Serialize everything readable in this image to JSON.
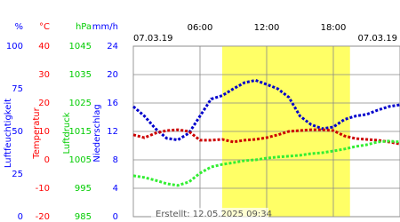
{
  "chart_data": {
    "type": "line",
    "date_left": "07.03.19",
    "date_right": "07.03.19",
    "created": "Erstellt: 12.05.2025 09:34",
    "xlim": [
      0,
      24
    ],
    "xticks": [
      {
        "value": 6,
        "label": "06:00"
      },
      {
        "value": 12,
        "label": "12:00"
      },
      {
        "value": 18,
        "label": "18:00"
      }
    ],
    "daylight": [
      8,
      19.5
    ],
    "grid": true,
    "axes": [
      {
        "unit": "%",
        "title": "Luftfeuchtigkeit",
        "color": "#0000ff",
        "lim": [
          0,
          100
        ],
        "ticks": [
          0,
          25,
          50,
          75,
          100
        ]
      },
      {
        "unit": "°C",
        "title": "Temperatur",
        "color": "#ff0000",
        "lim": [
          -20,
          40
        ],
        "ticks": [
          -20,
          -10,
          0,
          10,
          20,
          30,
          40
        ]
      },
      {
        "unit": "hPa",
        "title": "Luftdruck",
        "color": "#00cc00",
        "lim": [
          985,
          1045
        ],
        "ticks": [
          985,
          995,
          1005,
          1015,
          1025,
          1035,
          1045
        ]
      },
      {
        "unit": "mm/h",
        "title": "Niederschlag",
        "color": "#0000ff",
        "lim": [
          0,
          24
        ],
        "ticks": [
          0,
          4,
          8,
          12,
          16,
          20,
          24
        ]
      }
    ],
    "x": [
      0,
      1,
      2,
      3,
      4,
      5,
      6,
      7,
      8,
      9,
      10,
      11,
      12,
      13,
      14,
      15,
      16,
      17,
      18,
      19,
      20,
      21,
      22,
      23,
      24
    ],
    "series": [
      {
        "name": "Luftfeuchtigkeit",
        "axis": 0,
        "color": "#0000cc",
        "values": [
          64.6,
          59,
          51.6,
          46,
          45,
          49,
          59,
          69,
          71,
          75,
          78.6,
          80,
          77.6,
          75,
          70,
          59,
          54,
          51.6,
          52.6,
          57,
          59,
          60,
          62.5,
          64.6,
          65.6
        ]
      },
      {
        "name": "Temperatur",
        "axis": 1,
        "color": "#cc0000",
        "values": [
          8.8,
          7.8,
          9.4,
          10.3,
          10.6,
          10,
          6.9,
          6.9,
          7.2,
          6.3,
          6.9,
          7.2,
          7.8,
          8.8,
          10,
          10.3,
          10.6,
          10.6,
          10.3,
          8.4,
          7.5,
          7.2,
          6.9,
          6.3,
          5.6
        ]
      },
      {
        "name": "Luftdruck",
        "axis": 2,
        "color": "#33ee33",
        "values": [
          999.4,
          998.8,
          997.8,
          996.6,
          996,
          997.2,
          1000.3,
          1002.5,
          1003.4,
          1004,
          1004.7,
          1005,
          1005.6,
          1006,
          1006.3,
          1006.6,
          1007.2,
          1007.5,
          1008.1,
          1008.8,
          1009.7,
          1010.3,
          1011.3,
          1011.6,
          1011.3
        ]
      }
    ]
  }
}
